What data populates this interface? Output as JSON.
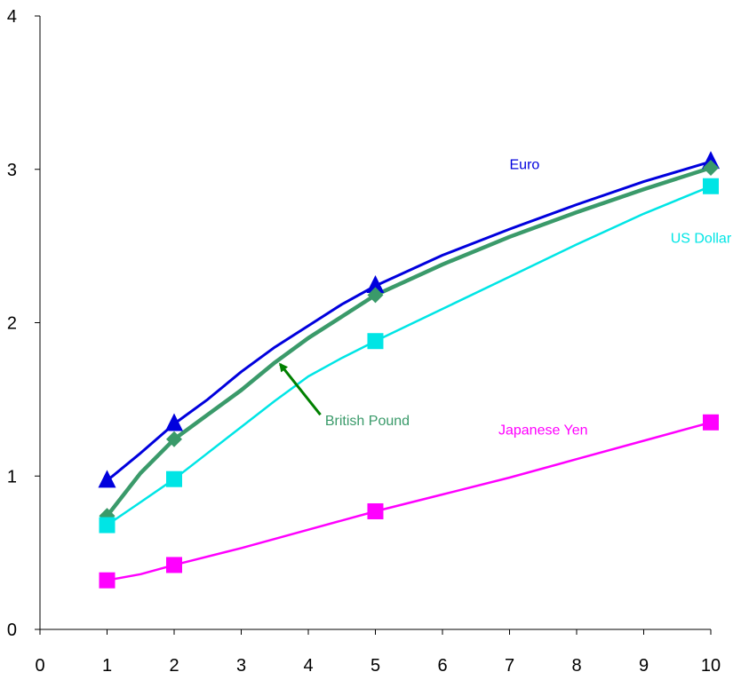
{
  "chart_data": {
    "type": "line",
    "title": "",
    "xlabel": "",
    "ylabel": "",
    "xlim": [
      0,
      10
    ],
    "ylim": [
      0,
      4
    ],
    "x_ticks": [
      "0",
      "1",
      "2",
      "3",
      "4",
      "5",
      "6",
      "7",
      "8",
      "9",
      "10"
    ],
    "y_ticks": [
      "0",
      "1",
      "2",
      "3",
      "4"
    ],
    "grid": false,
    "legend": "none",
    "series": [
      {
        "name": "Euro",
        "color": "#0000dd",
        "marker": "triangle",
        "x": [
          1,
          2,
          5,
          10
        ],
        "y": [
          0.97,
          1.34,
          2.24,
          3.05
        ],
        "curve": [
          [
            1,
            0.97
          ],
          [
            1.5,
            1.15
          ],
          [
            2,
            1.34
          ],
          [
            2.5,
            1.5
          ],
          [
            3,
            1.68
          ],
          [
            3.5,
            1.84
          ],
          [
            4,
            1.98
          ],
          [
            4.5,
            2.12
          ],
          [
            5,
            2.24
          ],
          [
            6,
            2.44
          ],
          [
            7,
            2.61
          ],
          [
            8,
            2.77
          ],
          [
            9,
            2.92
          ],
          [
            10,
            3.05
          ]
        ]
      },
      {
        "name": "British Pound",
        "color": "#3a9a6a",
        "marker": "diamond",
        "x": [
          1,
          2,
          5,
          10
        ],
        "y": [
          0.74,
          1.24,
          2.18,
          3.01
        ],
        "curve": [
          [
            1,
            0.74
          ],
          [
            1.5,
            1.02
          ],
          [
            2,
            1.24
          ],
          [
            2.5,
            1.4
          ],
          [
            3,
            1.56
          ],
          [
            3.5,
            1.74
          ],
          [
            4,
            1.9
          ],
          [
            4.5,
            2.04
          ],
          [
            5,
            2.18
          ],
          [
            6,
            2.38
          ],
          [
            7,
            2.56
          ],
          [
            8,
            2.72
          ],
          [
            9,
            2.87
          ],
          [
            10,
            3.01
          ]
        ]
      },
      {
        "name": "US Dollar",
        "color": "#00e5e5",
        "marker": "square",
        "x": [
          1,
          2,
          5,
          10
        ],
        "y": [
          0.68,
          0.98,
          1.88,
          2.89
        ],
        "curve": [
          [
            1,
            0.68
          ],
          [
            1.5,
            0.83
          ],
          [
            2,
            0.98
          ],
          [
            2.5,
            1.15
          ],
          [
            3,
            1.32
          ],
          [
            3.5,
            1.49
          ],
          [
            4,
            1.65
          ],
          [
            4.5,
            1.77
          ],
          [
            5,
            1.88
          ],
          [
            6,
            2.09
          ],
          [
            7,
            2.3
          ],
          [
            8,
            2.51
          ],
          [
            9,
            2.71
          ],
          [
            10,
            2.89
          ]
        ]
      },
      {
        "name": "Japanese Yen",
        "color": "#ff00ff",
        "marker": "square",
        "x": [
          1,
          2,
          5,
          10
        ],
        "y": [
          0.32,
          0.42,
          0.77,
          1.35
        ],
        "curve": [
          [
            1,
            0.32
          ],
          [
            1.5,
            0.36
          ],
          [
            2,
            0.42
          ],
          [
            3,
            0.53
          ],
          [
            4,
            0.65
          ],
          [
            5,
            0.77
          ],
          [
            6,
            0.88
          ],
          [
            7,
            0.99
          ],
          [
            8,
            1.11
          ],
          [
            9,
            1.23
          ],
          [
            10,
            1.35
          ]
        ]
      }
    ],
    "annotations": [
      {
        "series": "Euro",
        "text": "Euro",
        "at": [
          7.0,
          3.03
        ],
        "anchor": "start"
      },
      {
        "series": "US Dollar",
        "text": "US Dollar",
        "at": [
          9.4,
          2.55
        ],
        "anchor": "start"
      },
      {
        "series": "British Pound",
        "text": "British Pound",
        "at": [
          4.25,
          1.36
        ],
        "anchor": "start",
        "arrow_from": [
          4.18,
          1.4
        ],
        "arrow_to": [
          3.58,
          1.73
        ],
        "arrow_color": "#008000"
      },
      {
        "series": "Japanese Yen",
        "text": "Japanese Yen",
        "at": [
          7.5,
          1.3
        ],
        "anchor": "middle"
      }
    ]
  }
}
